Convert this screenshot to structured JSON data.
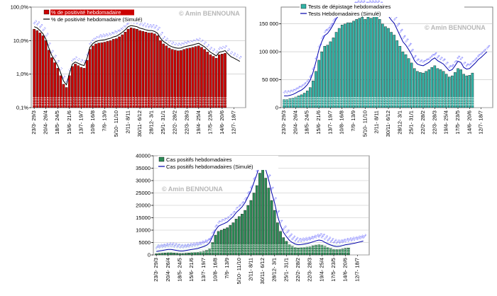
{
  "chart_data": [
    {
      "id": "positivity",
      "type": "bar",
      "scale": "log",
      "ylim": [
        0.1,
        100
      ],
      "y_ticks": [
        "0,1%",
        "1,0%",
        "10,0%",
        "100,0%"
      ],
      "y_tick_values": [
        0.1,
        1,
        10,
        100
      ],
      "x_labels": [
        "23/3- 29/3",
        "20/4- 26/4",
        "18/5- 24/5",
        "15/6- 21/6",
        "13/7- 19/7",
        "10/8- 16/8",
        "7/9- 13/9",
        "5/10- 11/10",
        "2/11- 8/11",
        "30/11- 6/12",
        "28/12- 3/1",
        "25/1- 31/1",
        "22/2- 28/2",
        "22/3- 28/3",
        "19/4- 25/4",
        "17/5- 23/5",
        "14/6- 20/6",
        "12/7- 18/7"
      ],
      "label_positions": [
        0,
        4,
        8,
        12,
        16,
        20,
        24,
        28,
        32,
        36,
        40,
        44,
        48,
        52,
        56,
        60,
        64,
        68
      ],
      "legend": [
        "% de positivité hebdomadaire",
        "% de positivité hebdomadaire (Simulé)"
      ],
      "watermark": "© Amin BENNOUNA",
      "bar_color": "#cc0000",
      "line_color": "#000000",
      "values": [
        22,
        20,
        17,
        14,
        10,
        5.2,
        3.1,
        2.2,
        1.5,
        0.9,
        0.5,
        0.4,
        0.9,
        1.7,
        2.0,
        1.8,
        1.6,
        1.5,
        2.6,
        5.5,
        7.0,
        8.0,
        8.5,
        8.7,
        9.0,
        9.5,
        10.0,
        11.0,
        11.5,
        13,
        15,
        18,
        22,
        24,
        23,
        22,
        20,
        19,
        18,
        17,
        17,
        16,
        14,
        10,
        8.0,
        7.0,
        6.0,
        5.5,
        5.2,
        5.0,
        5.1,
        5.5,
        5.8,
        6.0,
        6.3,
        6.7,
        7.0,
        6.3,
        5.5,
        4.6,
        3.8,
        3.4,
        3.0,
        3.8,
        4.0,
        4.2
      ],
      "simulated": [
        26,
        24,
        20,
        16,
        11,
        6.0,
        3.6,
        2.6,
        1.8,
        1.1,
        0.62,
        0.48,
        1.05,
        2.0,
        2.3,
        2.1,
        1.9,
        1.8,
        3.0,
        6.4,
        8.2,
        9.4,
        10,
        10.3,
        10.6,
        11.2,
        11.8,
        12.9,
        13.6,
        15.3,
        17.7,
        21,
        26,
        28,
        27,
        26,
        23.5,
        22.4,
        21,
        20,
        20,
        18.8,
        16.5,
        11.8,
        9.4,
        8.3,
        7.1,
        6.5,
        6.1,
        5.9,
        6.0,
        6.5,
        6.8,
        7.1,
        7.4,
        7.9,
        8.3,
        7.4,
        6.5,
        5.4,
        4.5,
        4.0,
        3.5,
        4.5,
        4.7,
        5.0,
        4.0,
        3.3,
        3.0,
        2.7,
        2.4
      ]
    },
    {
      "id": "tests",
      "type": "bar",
      "scale": "linear",
      "ylim": [
        0,
        180000
      ],
      "y_ticks": [
        "0",
        "50 000",
        "100 000",
        "150 000"
      ],
      "y_tick_values": [
        0,
        50000,
        100000,
        150000
      ],
      "x_labels": [
        "23/3- 29/3",
        "20/4- 26/4",
        "18/5- 24/5",
        "15/6- 21/6",
        "13/7- 19/7",
        "10/8- 16/8",
        "7/9- 13/9",
        "5/10- 11/10",
        "2/11- 8/11",
        "30/11- 6/12",
        "28/12- 3/1",
        "25/1- 31/1",
        "22/2- 28/2",
        "22/3- 28/3",
        "19/4- 25/4",
        "17/5- 23/5",
        "14/6- 20/6",
        "12/7- 18/7"
      ],
      "label_positions": [
        0,
        4,
        8,
        12,
        16,
        20,
        24,
        28,
        32,
        36,
        40,
        44,
        48,
        52,
        56,
        60,
        64,
        68
      ],
      "legend": [
        "Tests de dépistage hebdomadaires",
        "Tests Hebdomadaires (Simulé)"
      ],
      "watermark": "© Amin BENNOUNA",
      "bar_color": "#33b3a6",
      "line_color": "#0000aa",
      "values": [
        15000,
        15000,
        16000,
        17000,
        19000,
        21000,
        23000,
        26000,
        30000,
        36000,
        48000,
        65000,
        85000,
        100000,
        110000,
        112000,
        118000,
        125000,
        135000,
        142000,
        148000,
        150000,
        152000,
        152000,
        155000,
        158000,
        160000,
        162000,
        158000,
        162000,
        160000,
        165000,
        163000,
        158000,
        150000,
        145000,
        142000,
        135000,
        130000,
        120000,
        110000,
        100000,
        95000,
        88000,
        80000,
        70000,
        65000,
        63000,
        62000,
        65000,
        68000,
        72000,
        75000,
        70000,
        68000,
        65000,
        60000,
        55000,
        57000,
        63000,
        70000,
        68000,
        60000,
        57000,
        58000,
        62000
      ],
      "simulated": [
        21000,
        21000,
        22000,
        23500,
        26000,
        29000,
        31500,
        35500,
        41000,
        49000,
        63000,
        82000,
        103000,
        118000,
        129000,
        133000,
        140000,
        149000,
        159000,
        166000,
        171000,
        173000,
        175000,
        175000,
        178000,
        180000,
        180000,
        180000,
        178000,
        180000,
        180000,
        180000,
        180000,
        178000,
        171000,
        167000,
        164000,
        157000,
        151000,
        140000,
        129000,
        118000,
        112000,
        104000,
        95000,
        84000,
        78000,
        76000,
        75000,
        78000,
        81000,
        86000,
        89000,
        84000,
        81000,
        78000,
        72000,
        66000,
        68000,
        75000,
        83000,
        81000,
        72000,
        69000,
        70000,
        75000,
        80000,
        86000,
        90000,
        95000,
        100000
      ]
    },
    {
      "id": "cases",
      "type": "bar",
      "scale": "linear",
      "ylim": [
        0,
        40000
      ],
      "y_ticks": [
        "0",
        "5000",
        "10000",
        "15000",
        "20000",
        "25000",
        "30000",
        "35000",
        "40000"
      ],
      "y_tick_values": [
        0,
        5000,
        10000,
        15000,
        20000,
        25000,
        30000,
        35000,
        40000
      ],
      "x_labels": [
        "23/3- 29/3",
        "20/4- 26/4",
        "18/5- 24/5",
        "15/6- 21/6",
        "13/7- 19/7",
        "10/8- 16/8",
        "7/9- 13/9",
        "5/10- 11/10",
        "2/11- 8/11",
        "30/11- 6/12",
        "28/12- 3/1",
        "25/1- 31/1",
        "22/2- 28/2",
        "22/3- 28/3",
        "19/4- 25/4",
        "17/5- 23/5",
        "14/6- 20/6",
        "12/7- 18/7"
      ],
      "label_positions": [
        0,
        4,
        8,
        12,
        16,
        20,
        24,
        28,
        32,
        36,
        40,
        44,
        48,
        52,
        56,
        60,
        64,
        68
      ],
      "legend": [
        "Cas positifs hebdomadaires",
        "Cas positifs hebdomadaires (Simulé)"
      ],
      "watermark": "© Amin BENNOUNA",
      "bar_color": "#2e8b57",
      "line_color": "#0000aa",
      "values": [
        500,
        600,
        700,
        800,
        900,
        900,
        800,
        700,
        600,
        600,
        700,
        800,
        900,
        1000,
        1100,
        1300,
        1500,
        1800,
        2500,
        5000,
        8000,
        9500,
        10000,
        10500,
        11000,
        12000,
        13000,
        14500,
        15500,
        16500,
        18000,
        20000,
        22000,
        25000,
        28000,
        33000,
        35000,
        31000,
        27000,
        22000,
        18000,
        13000,
        9500,
        7000,
        5500,
        4200,
        3500,
        3000,
        2800,
        2900,
        3000,
        3200,
        3400,
        3700,
        4000,
        4200,
        4000,
        3500,
        3000,
        2600,
        2300,
        2200,
        2300,
        2500,
        2700,
        2800
      ],
      "simulated": [
        1400,
        1600,
        1800,
        2000,
        2200,
        2200,
        2000,
        1800,
        1600,
        1600,
        1800,
        2000,
        2200,
        2400,
        2600,
        3000,
        3400,
        3900,
        4900,
        7400,
        10000,
        11600,
        12200,
        12700,
        13300,
        14400,
        15500,
        17100,
        18200,
        19400,
        21100,
        23500,
        25800,
        29200,
        32500,
        36500,
        37500,
        34500,
        30200,
        25200,
        21000,
        15700,
        11900,
        9100,
        7400,
        5900,
        5000,
        4400,
        4100,
        4200,
        4400,
        4600,
        4900,
        5300,
        5700,
        6000,
        5800,
        5100,
        4500,
        4000,
        3600,
        3400,
        3500,
        3800,
        4100,
        4300,
        4500,
        4700,
        5000,
        5300,
        5600
      ]
    }
  ]
}
